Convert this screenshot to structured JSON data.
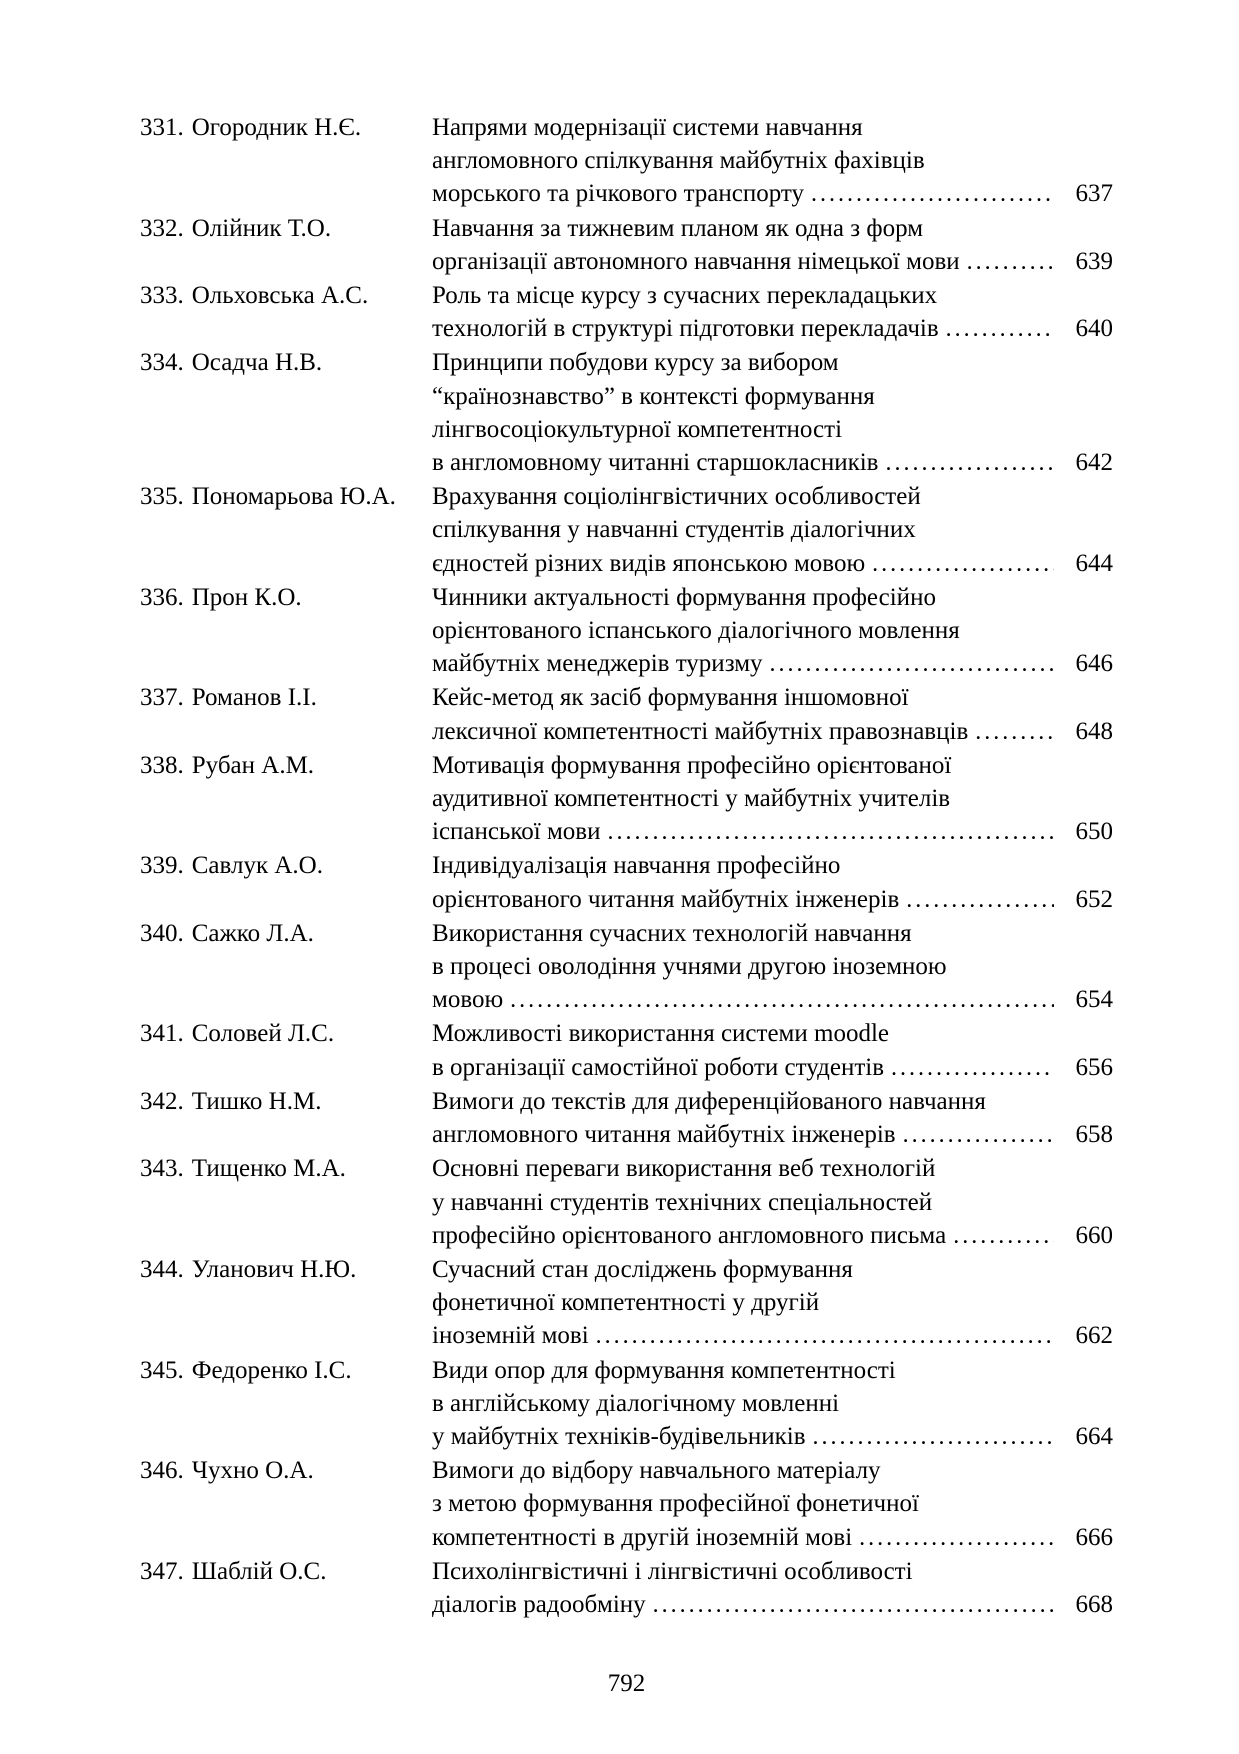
{
  "footer": {
    "page_number": "792"
  },
  "toc": {
    "entries": [
      {
        "number": "331.",
        "author": "Огородник Н.Є.",
        "title_lines": [
          "Напрями модернізації системи навчання",
          "англомовного спілкування майбутніх фахівців",
          "морського та річкового транспорту"
        ],
        "page": "637"
      },
      {
        "number": "332.",
        "author": "Олійник Т.О.",
        "title_lines": [
          "Навчання за тижневим планом як одна з форм",
          "організації автономного навчання німецької мови"
        ],
        "page": "639"
      },
      {
        "number": "333.",
        "author": "Ольховська А.С.",
        "title_lines": [
          "Роль та місце курсу з сучасних перекладацьких",
          "технологій в структурі підготовки перекладачів"
        ],
        "page": "640"
      },
      {
        "number": "334.",
        "author": "Осадча Н.В.",
        "title_lines": [
          "Принципи побудови курсу за вибором",
          "“країнознавство” в контексті формування",
          "лінгвосоціокультурної компетентності",
          "в англомовному читанні старшокласників"
        ],
        "page": "642"
      },
      {
        "number": "335.",
        "author": "Пономарьова Ю.А.",
        "title_lines": [
          "Врахування соціолінгвістичних особливостей",
          "спілкування у навчанні студентів діалогічних",
          "єдностей різних видів японською мовою"
        ],
        "page": "644"
      },
      {
        "number": "336.",
        "author": "Прон К.О.",
        "title_lines": [
          "Чинники актуальності формування професійно",
          "орієнтованого іспанського діалогічного мовлення",
          "майбутніх менеджерів туризму"
        ],
        "page": "646"
      },
      {
        "number": "337.",
        "author": "Романов І.І.",
        "title_lines": [
          "Кейс-метод як засіб формування іншомовної",
          "лексичної компетентності майбутніх правознавців"
        ],
        "page": "648"
      },
      {
        "number": "338.",
        "author": "Рубан А.М.",
        "title_lines": [
          "Мотивація формування професійно орієнтованої",
          "аудитивної компетентності у майбутніх учителів",
          "іспанської мови"
        ],
        "page": "650"
      },
      {
        "number": "339.",
        "author": "Савлук А.О.",
        "title_lines": [
          "Індивідуалізація навчання професійно",
          "орієнтованого читання майбутніх інженерів"
        ],
        "page": "652"
      },
      {
        "number": "340.",
        "author": "Сажко Л.А.",
        "title_lines": [
          "Використання сучасних технологій навчання",
          "в процесі оволодіння учнями другою іноземною",
          "мовою"
        ],
        "page": "654"
      },
      {
        "number": "341.",
        "author": "Соловей Л.С.",
        "title_lines": [
          "Можливості використання системи moodle",
          "в організації самостійної роботи студентів"
        ],
        "page": "656"
      },
      {
        "number": "342.",
        "author": "Тишко Н.М.",
        "title_lines": [
          "Вимоги до текстів для диференційованого навчання",
          "англомовного читання майбутніх інженерів"
        ],
        "page": "658"
      },
      {
        "number": "343.",
        "author": "Тищенко М.А.",
        "title_lines": [
          "Основні переваги використання веб технологій",
          "у навчанні студентів технічних спеціальностей",
          "професійно орієнтованого англомовного письма"
        ],
        "page": "660"
      },
      {
        "number": "344.",
        "author": "Уланович Н.Ю.",
        "title_lines": [
          "Сучасний стан досліджень формування",
          "фонетичної компетентності у другій",
          "іноземній мові"
        ],
        "page": "662"
      },
      {
        "number": "345.",
        "author": "Федоренко І.С.",
        "title_lines": [
          "Види опор для формування компетентності",
          "в англійському діалогічному мовленні",
          "у майбутніх техніків-будівельників"
        ],
        "page": "664"
      },
      {
        "number": "346.",
        "author": "Чухно О.А.",
        "title_lines": [
          "Вимоги до відбору навчального матеріалу",
          "з метою формування професійної фонетичної",
          "компетентності в другій іноземній мові"
        ],
        "page": "666"
      },
      {
        "number": "347.",
        "author": "Шаблій О.С.",
        "title_lines": [
          "Психолінгвістичні і лінгвістичні особливості",
          "діалогів радообміну"
        ],
        "page": "668"
      }
    ]
  }
}
